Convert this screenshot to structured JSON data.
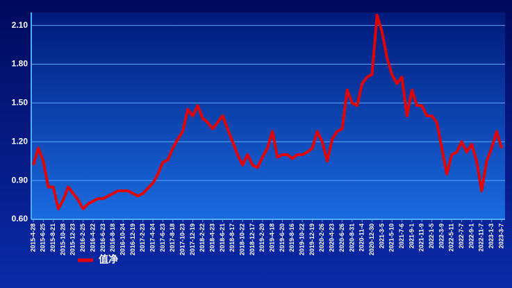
{
  "chart_data": {
    "type": "line",
    "categories": [
      "2015-4-28",
      null,
      "2015-6-25",
      null,
      "2015-8-21",
      null,
      "2015-10-28",
      null,
      "2015-12-23",
      null,
      "2016-2-25",
      null,
      "2016-4-22",
      null,
      "2016-6-23",
      null,
      "2016-8-18",
      null,
      "2016-10-24",
      null,
      "2016-12-19",
      null,
      "2017-2-23",
      null,
      "2017-4-24",
      null,
      "2017-6-23",
      null,
      "2017-8-18",
      null,
      "2017-10-23",
      null,
      "2017-12-19",
      null,
      "2018-2-22",
      null,
      "2018-4-23",
      null,
      "2018-6-21",
      null,
      "2018-8-17",
      null,
      "2018-10-22",
      null,
      "2018-12-17",
      null,
      "2019-2-20",
      null,
      "2019-4-18",
      null,
      "2019-6-20",
      null,
      "2019-8-16",
      null,
      "2019-10-22",
      null,
      "2019-12-19",
      null,
      "2020-2-26",
      null,
      "2020-4-23",
      null,
      "2020-6-26",
      null,
      "2020-8-31",
      null,
      "2020-11-4",
      null,
      "2020-12-30",
      null,
      "2021-3-5",
      null,
      "2021-5-10",
      null,
      "2021-7-6",
      null,
      "2021-9-1",
      null,
      "2021-11-9",
      null,
      "2022-1-5",
      null,
      "2022-3-9",
      null,
      "2022-5-11",
      null,
      "2022-7-7",
      null,
      "2022-9-1",
      null,
      "2022-11-7",
      null,
      "2023-1-3",
      null,
      "2023-3-7"
    ],
    "series": [
      {
        "name": "值净",
        "color": "#e00000",
        "values": [
          1.02,
          1.15,
          1.05,
          0.85,
          0.85,
          0.68,
          0.75,
          0.85,
          0.8,
          0.75,
          0.68,
          0.72,
          0.74,
          0.76,
          0.76,
          0.78,
          0.8,
          0.82,
          0.82,
          0.82,
          0.8,
          0.78,
          0.8,
          0.84,
          0.88,
          0.95,
          1.04,
          1.06,
          1.15,
          1.22,
          1.28,
          1.45,
          1.4,
          1.48,
          1.38,
          1.35,
          1.3,
          1.35,
          1.4,
          1.3,
          1.2,
          1.1,
          1.02,
          1.1,
          1.02,
          1.0,
          1.08,
          1.15,
          1.28,
          1.08,
          1.1,
          1.1,
          1.07,
          1.1,
          1.1,
          1.12,
          1.15,
          1.28,
          1.2,
          1.05,
          1.22,
          1.28,
          1.3,
          1.6,
          1.5,
          1.48,
          1.65,
          1.7,
          1.72,
          2.18,
          2.05,
          1.85,
          1.72,
          1.65,
          1.7,
          1.4,
          1.6,
          1.48,
          1.48,
          1.4,
          1.4,
          1.35,
          1.15,
          0.95,
          1.1,
          1.12,
          1.2,
          1.12,
          1.18,
          1.05,
          0.82,
          1.05,
          1.15,
          1.28,
          1.15
        ]
      }
    ],
    "ylim": [
      0.6,
      2.2
    ],
    "yticks": [
      {
        "value": 0.6,
        "label": "0.60"
      },
      {
        "value": 0.9,
        "label": "0.90"
      },
      {
        "value": 1.2,
        "label": "1.20"
      },
      {
        "value": 1.5,
        "label": "1.50"
      },
      {
        "value": 1.8,
        "label": "1.80"
      },
      {
        "value": 2.1,
        "label": "2.10"
      }
    ],
    "grid": true
  }
}
